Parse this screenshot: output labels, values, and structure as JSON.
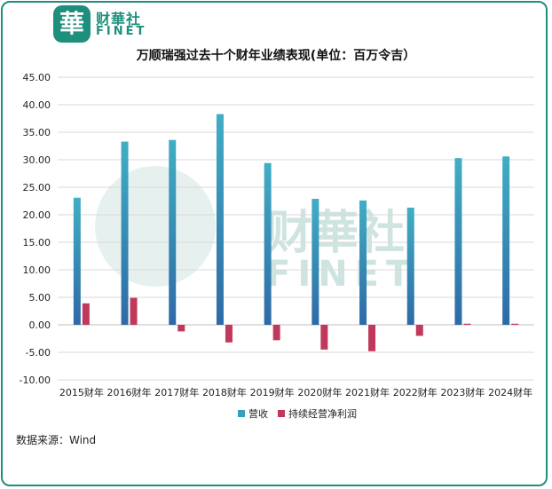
{
  "brand": {
    "logo_char": "華",
    "name_cn": "财華社",
    "name_en": "FINET"
  },
  "source": "数据来源：Wind",
  "colors": {
    "revenue": "#3a9ec0",
    "revenue_dark": "#2f6fa8",
    "profit": "#c0395a",
    "brand": "#1f8f7d"
  },
  "chart_data": {
    "type": "bar",
    "title": "万顺瑞强过去十个财年业绩表现(单位：百万令吉）",
    "categories": [
      "2015财年",
      "2016财年",
      "2017财年",
      "2018财年",
      "2019财年",
      "2020财年",
      "2021财年",
      "2022财年",
      "2023财年",
      "2024财年"
    ],
    "series": [
      {
        "name": "营收",
        "values": [
          23.1,
          33.3,
          33.6,
          38.3,
          29.4,
          22.9,
          22.6,
          21.3,
          30.3,
          30.6
        ]
      },
      {
        "name": "持续经营净利润",
        "values": [
          3.9,
          4.9,
          -1.2,
          -3.2,
          -2.8,
          -4.5,
          -4.8,
          -2.0,
          0.2,
          0.2
        ]
      }
    ],
    "ylim": [
      -10,
      45
    ],
    "yticks": [
      "45.00",
      "40.00",
      "35.00",
      "30.00",
      "25.00",
      "20.00",
      "15.00",
      "10.00",
      "5.00",
      "0.00",
      "-5.00",
      "-10.00"
    ],
    "grid": true,
    "legend": "bottom"
  }
}
